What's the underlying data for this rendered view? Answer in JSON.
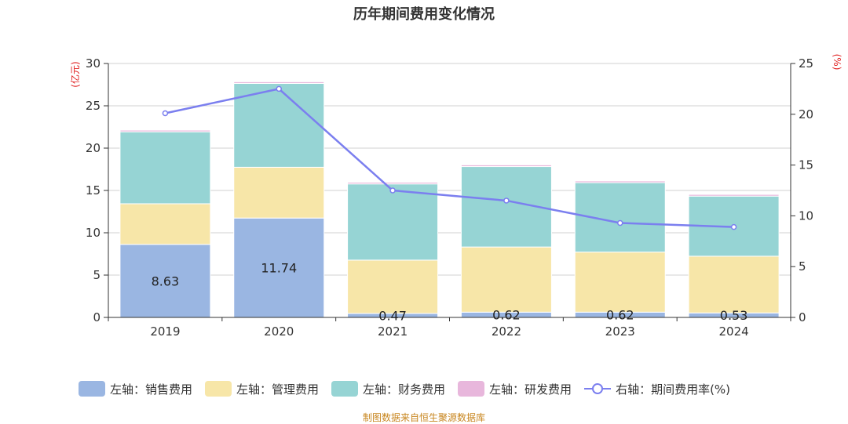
{
  "chart_data": {
    "type": "bar",
    "title": "历年期间费用变化情况",
    "categories": [
      "2019",
      "2020",
      "2021",
      "2022",
      "2023",
      "2024"
    ],
    "series": [
      {
        "name": "左轴：销售费用",
        "kind": "bar",
        "axis": "left",
        "color": "#9ab6e2",
        "values": [
          8.63,
          11.74,
          0.47,
          0.62,
          0.62,
          0.53
        ],
        "labels": [
          "8.63",
          "11.74",
          "0.47",
          "0.62",
          "0.62",
          "0.53"
        ]
      },
      {
        "name": "左轴：管理费用",
        "kind": "bar",
        "axis": "left",
        "color": "#f7e6a8",
        "values": [
          4.8,
          6.0,
          6.3,
          7.7,
          7.1,
          6.7
        ]
      },
      {
        "name": "左轴：财务费用",
        "kind": "bar",
        "axis": "left",
        "color": "#96d4d4",
        "values": [
          8.5,
          9.9,
          9.0,
          9.5,
          8.2,
          7.1
        ]
      },
      {
        "name": "左轴：研发费用",
        "kind": "bar",
        "axis": "left",
        "color": "#e8b7dc",
        "values": [
          0.2,
          0.2,
          0.2,
          0.2,
          0.2,
          0.2
        ]
      },
      {
        "name": "右轴：期间费用率(%)",
        "kind": "line",
        "axis": "right",
        "color": "#7b7fef",
        "values": [
          20.1,
          22.5,
          12.5,
          11.5,
          9.3,
          8.9
        ]
      }
    ],
    "left_axis": {
      "label": "(亿元)",
      "min": 0,
      "max": 30,
      "ticks": [
        0,
        5,
        10,
        15,
        20,
        25,
        30
      ]
    },
    "right_axis": {
      "label": "(%)",
      "min": 0,
      "max": 25,
      "ticks": [
        0,
        5,
        10,
        15,
        20,
        25
      ]
    },
    "grid": true,
    "legend_position": "bottom"
  },
  "source_text": "制图数据来自恒生聚源数据库"
}
